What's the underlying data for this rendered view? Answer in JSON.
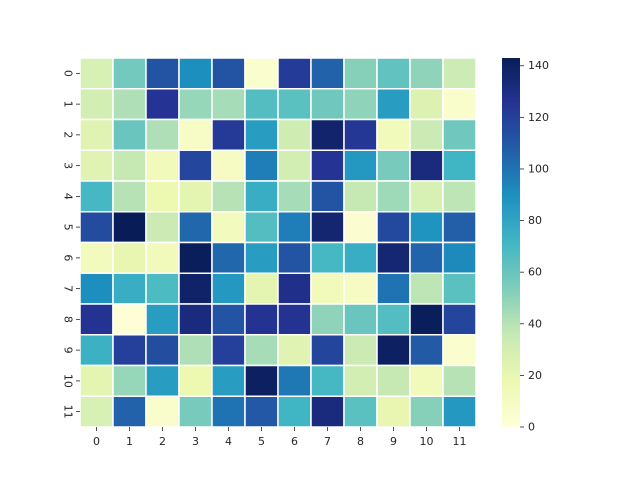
{
  "chart_data": {
    "type": "heatmap",
    "title": "",
    "xlabel": "",
    "ylabel": "",
    "x_tick_labels": [
      "0",
      "1",
      "2",
      "3",
      "4",
      "5",
      "6",
      "7",
      "8",
      "9",
      "10",
      "11"
    ],
    "y_tick_labels": [
      "0",
      "1",
      "2",
      "3",
      "4",
      "5",
      "6",
      "7",
      "8",
      "9",
      "10",
      "11"
    ],
    "values": [
      [
        28,
        57,
        112,
        90,
        112,
        5,
        122,
        106,
        52,
        62,
        50,
        33
      ],
      [
        30,
        42,
        125,
        48,
        44,
        66,
        64,
        58,
        50,
        84,
        26,
        6
      ],
      [
        24,
        60,
        42,
        8,
        123,
        84,
        32,
        137,
        124,
        14,
        34,
        58
      ],
      [
        24,
        36,
        14,
        117,
        10,
        96,
        30,
        125,
        86,
        56,
        132,
        72
      ],
      [
        70,
        40,
        18,
        22,
        40,
        76,
        44,
        112,
        36,
        46,
        28,
        38
      ],
      [
        115,
        143,
        34,
        104,
        12,
        66,
        96,
        136,
        4,
        116,
        88,
        107
      ],
      [
        12,
        20,
        14,
        142,
        104,
        84,
        112,
        70,
        76,
        135,
        105,
        92
      ],
      [
        90,
        76,
        68,
        138,
        86,
        22,
        128,
        14,
        10,
        100,
        38,
        64
      ],
      [
        126,
        2,
        84,
        132,
        112,
        126,
        126,
        50,
        60,
        66,
        142,
        118
      ],
      [
        74,
        120,
        114,
        42,
        120,
        44,
        24,
        118,
        34,
        140,
        109,
        5
      ],
      [
        22,
        48,
        84,
        18,
        84,
        140,
        98,
        70,
        30,
        36,
        14,
        40
      ],
      [
        28,
        106,
        6,
        56,
        100,
        110,
        72,
        132,
        64,
        20,
        52,
        86
      ]
    ],
    "vmin": 0,
    "vmax": 143,
    "colormap": [
      "#ffffd9",
      "#edf8b1",
      "#c7e9b4",
      "#7fcdbb",
      "#41b6c4",
      "#1d91c0",
      "#225ea8",
      "#253494",
      "#081d58"
    ],
    "cell_border_color": "#ffffff",
    "colorbar_ticks": [
      0,
      20,
      40,
      60,
      80,
      100,
      120,
      140
    ]
  }
}
